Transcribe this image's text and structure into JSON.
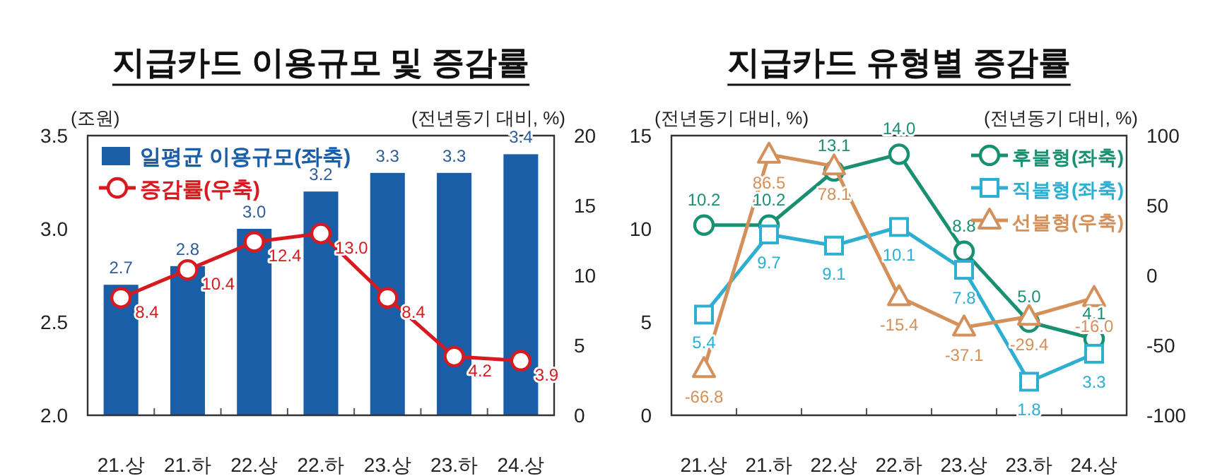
{
  "chart_data": [
    {
      "type": "bar",
      "title": "지급카드 이용규모 및 증감률",
      "ylabel": "(조원)",
      "y2label": "(전년동기 대비, %)",
      "categories": [
        "21.상",
        "21.하",
        "22.상",
        "22.하",
        "23.상",
        "23.하",
        "24.상"
      ],
      "series": [
        {
          "name": "일평균 이용규모(좌축)",
          "color": "#1a5ea8",
          "values": [
            2.7,
            2.8,
            3.0,
            3.2,
            3.3,
            3.3,
            3.4
          ],
          "value_labels": [
            "2.7",
            "2.8",
            "3.0",
            "3.2",
            "3.3",
            "3.3",
            "3.4"
          ]
        },
        {
          "name": "증감률(우축)",
          "type": "line",
          "axis": "y2",
          "color": "#d71920",
          "marker": "circle",
          "values": [
            8.4,
            10.4,
            12.4,
            13.0,
            8.4,
            4.2,
            3.9
          ],
          "value_labels": [
            "8.4",
            "10.4",
            "12.4",
            "13.0",
            "8.4",
            "4.2",
            "3.9"
          ]
        }
      ],
      "ylim": [
        2.0,
        3.5
      ],
      "yticks": [
        {
          "value": 2.0,
          "label": "2.0"
        },
        {
          "value": 2.5,
          "label": "2.5"
        },
        {
          "value": 3.0,
          "label": "3.0"
        },
        {
          "value": 3.5,
          "label": "3.5"
        }
      ],
      "y2lim": [
        0,
        20
      ],
      "y2ticks": [
        0,
        5,
        10,
        15,
        20
      ],
      "legend": "top left",
      "grid": false
    },
    {
      "type": "line",
      "title": "지급카드 유형별 증감률",
      "ylabel": "(전년동기 대비, %)",
      "y2label": "(전년동기 대비, %)",
      "categories": [
        "21.상",
        "21.하",
        "22.상",
        "22.하",
        "23.상",
        "23.하",
        "24.상"
      ],
      "series": [
        {
          "name": "후불형(좌축)",
          "color": "#1a9073",
          "marker": "circle",
          "values": [
            10.2,
            10.2,
            13.1,
            14.0,
            8.8,
            5.0,
            4.1
          ],
          "value_labels": [
            "10.2",
            "10.2",
            "13.1",
            "14.0",
            "8.8",
            "5.0",
            "4.1"
          ]
        },
        {
          "name": "직불형(좌축)",
          "color": "#2eaed0",
          "marker": "square",
          "values": [
            5.4,
            9.7,
            9.1,
            10.1,
            7.8,
            1.8,
            3.3
          ],
          "value_labels": [
            "5.4",
            "9.7",
            "9.1",
            "10.1",
            "7.8",
            "1.8",
            "3.3"
          ]
        },
        {
          "name": "선불형(우축)",
          "axis": "y2",
          "color": "#d4905a",
          "marker": "triangle",
          "values": [
            -66.8,
            86.5,
            78.1,
            -15.4,
            -37.1,
            -29.4,
            -16.0
          ],
          "value_labels": [
            "-66.8",
            "86.5",
            "78.1",
            "-15.4",
            "-37.1",
            "-29.4",
            "-16.0"
          ]
        }
      ],
      "ylim": [
        0,
        15
      ],
      "yticks": [
        0,
        5,
        10,
        15
      ],
      "y2lim": [
        -100,
        100
      ],
      "y2ticks": [
        -100,
        -50,
        0,
        50,
        100
      ],
      "legend": "top right",
      "grid": false
    }
  ]
}
